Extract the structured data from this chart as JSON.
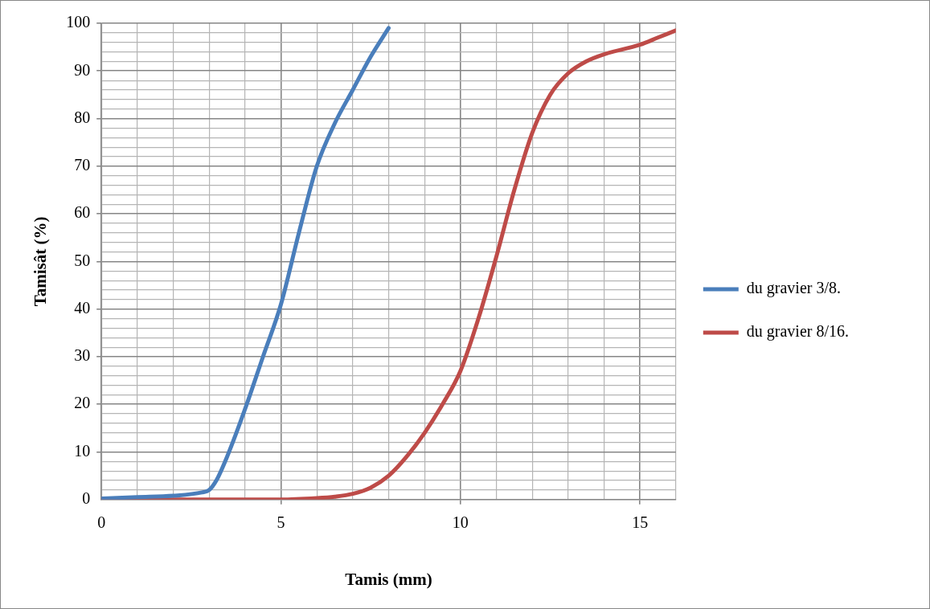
{
  "chart_data": {
    "type": "line",
    "xlabel": "Tamis (mm)",
    "ylabel": "Tamisât (%)",
    "xlim": [
      0,
      16
    ],
    "xticks": [
      0,
      {
        "value": 1,
        "label": null
      },
      {
        "value": 2,
        "label": null
      },
      {
        "value": 3,
        "label": null
      },
      {
        "value": 4,
        "label": null
      },
      5,
      {
        "value": 6,
        "label": null
      },
      {
        "value": 7,
        "label": null
      },
      {
        "value": 8,
        "label": null
      },
      {
        "value": 9,
        "label": null
      },
      10,
      {
        "value": 11,
        "label": null
      },
      {
        "value": 12,
        "label": null
      },
      {
        "value": 13,
        "label": null
      },
      {
        "value": 14,
        "label": null
      },
      15,
      {
        "value": 16,
        "label": null
      }
    ],
    "ylim": [
      0,
      100
    ],
    "yticks": [
      0,
      {
        "value": 2,
        "label": null
      },
      {
        "value": 4,
        "label": null
      },
      {
        "value": 6,
        "label": null
      },
      {
        "value": 8,
        "label": null
      },
      10,
      {
        "value": 12,
        "label": null
      },
      {
        "value": 14,
        "label": null
      },
      {
        "value": 16,
        "label": null
      },
      {
        "value": 18,
        "label": null
      },
      20,
      {
        "value": 22,
        "label": null
      },
      {
        "value": 24,
        "label": null
      },
      {
        "value": 26,
        "label": null
      },
      {
        "value": 28,
        "label": null
      },
      30,
      {
        "value": 32,
        "label": null
      },
      {
        "value": 34,
        "label": null
      },
      {
        "value": 36,
        "label": null
      },
      {
        "value": 38,
        "label": null
      },
      40,
      {
        "value": 42,
        "label": null
      },
      {
        "value": 44,
        "label": null
      },
      {
        "value": 46,
        "label": null
      },
      {
        "value": 48,
        "label": null
      },
      50,
      {
        "value": 52,
        "label": null
      },
      {
        "value": 54,
        "label": null
      },
      {
        "value": 56,
        "label": null
      },
      {
        "value": 58,
        "label": null
      },
      60,
      {
        "value": 62,
        "label": null
      },
      {
        "value": 64,
        "label": null
      },
      {
        "value": 66,
        "label": null
      },
      {
        "value": 68,
        "label": null
      },
      70,
      {
        "value": 72,
        "label": null
      },
      {
        "value": 74,
        "label": null
      },
      {
        "value": 76,
        "label": null
      },
      {
        "value": 78,
        "label": null
      },
      80,
      {
        "value": 82,
        "label": null
      },
      {
        "value": 84,
        "label": null
      },
      {
        "value": 86,
        "label": null
      },
      {
        "value": 88,
        "label": null
      },
      90,
      {
        "value": 92,
        "label": null
      },
      {
        "value": 94,
        "label": null
      },
      {
        "value": 96,
        "label": null
      },
      {
        "value": 98,
        "label": null
      },
      100
    ],
    "grid": true,
    "legend": "right",
    "marker": "none",
    "line_style": "solid",
    "series": [
      {
        "name": "du gravier 3/8.",
        "color": "#4a7ebb",
        "x": [
          0,
          1,
          2,
          2.8,
          3,
          3.2,
          3.5,
          4,
          4.5,
          5,
          5.5,
          6,
          6.5,
          7,
          7.5,
          8
        ],
        "values": [
          0.2,
          0.5,
          0.8,
          1.5,
          2,
          4,
          9,
          19,
          30,
          41,
          56,
          70,
          79,
          86,
          93,
          99
        ]
      },
      {
        "name": "du gravier 8/16.",
        "color": "#be4b48",
        "x": [
          0,
          5,
          6,
          6.5,
          7,
          7.5,
          8,
          8.5,
          9,
          9.5,
          10,
          10.5,
          11,
          11.5,
          12,
          12.5,
          13,
          13.5,
          14,
          15,
          15.5,
          16
        ],
        "values": [
          0,
          0,
          0.3,
          0.6,
          1.2,
          2.5,
          5,
          9,
          14,
          20,
          27,
          38,
          51,
          65,
          77,
          85,
          89.5,
          92,
          93.5,
          95.5,
          97,
          98.5
        ]
      }
    ]
  }
}
